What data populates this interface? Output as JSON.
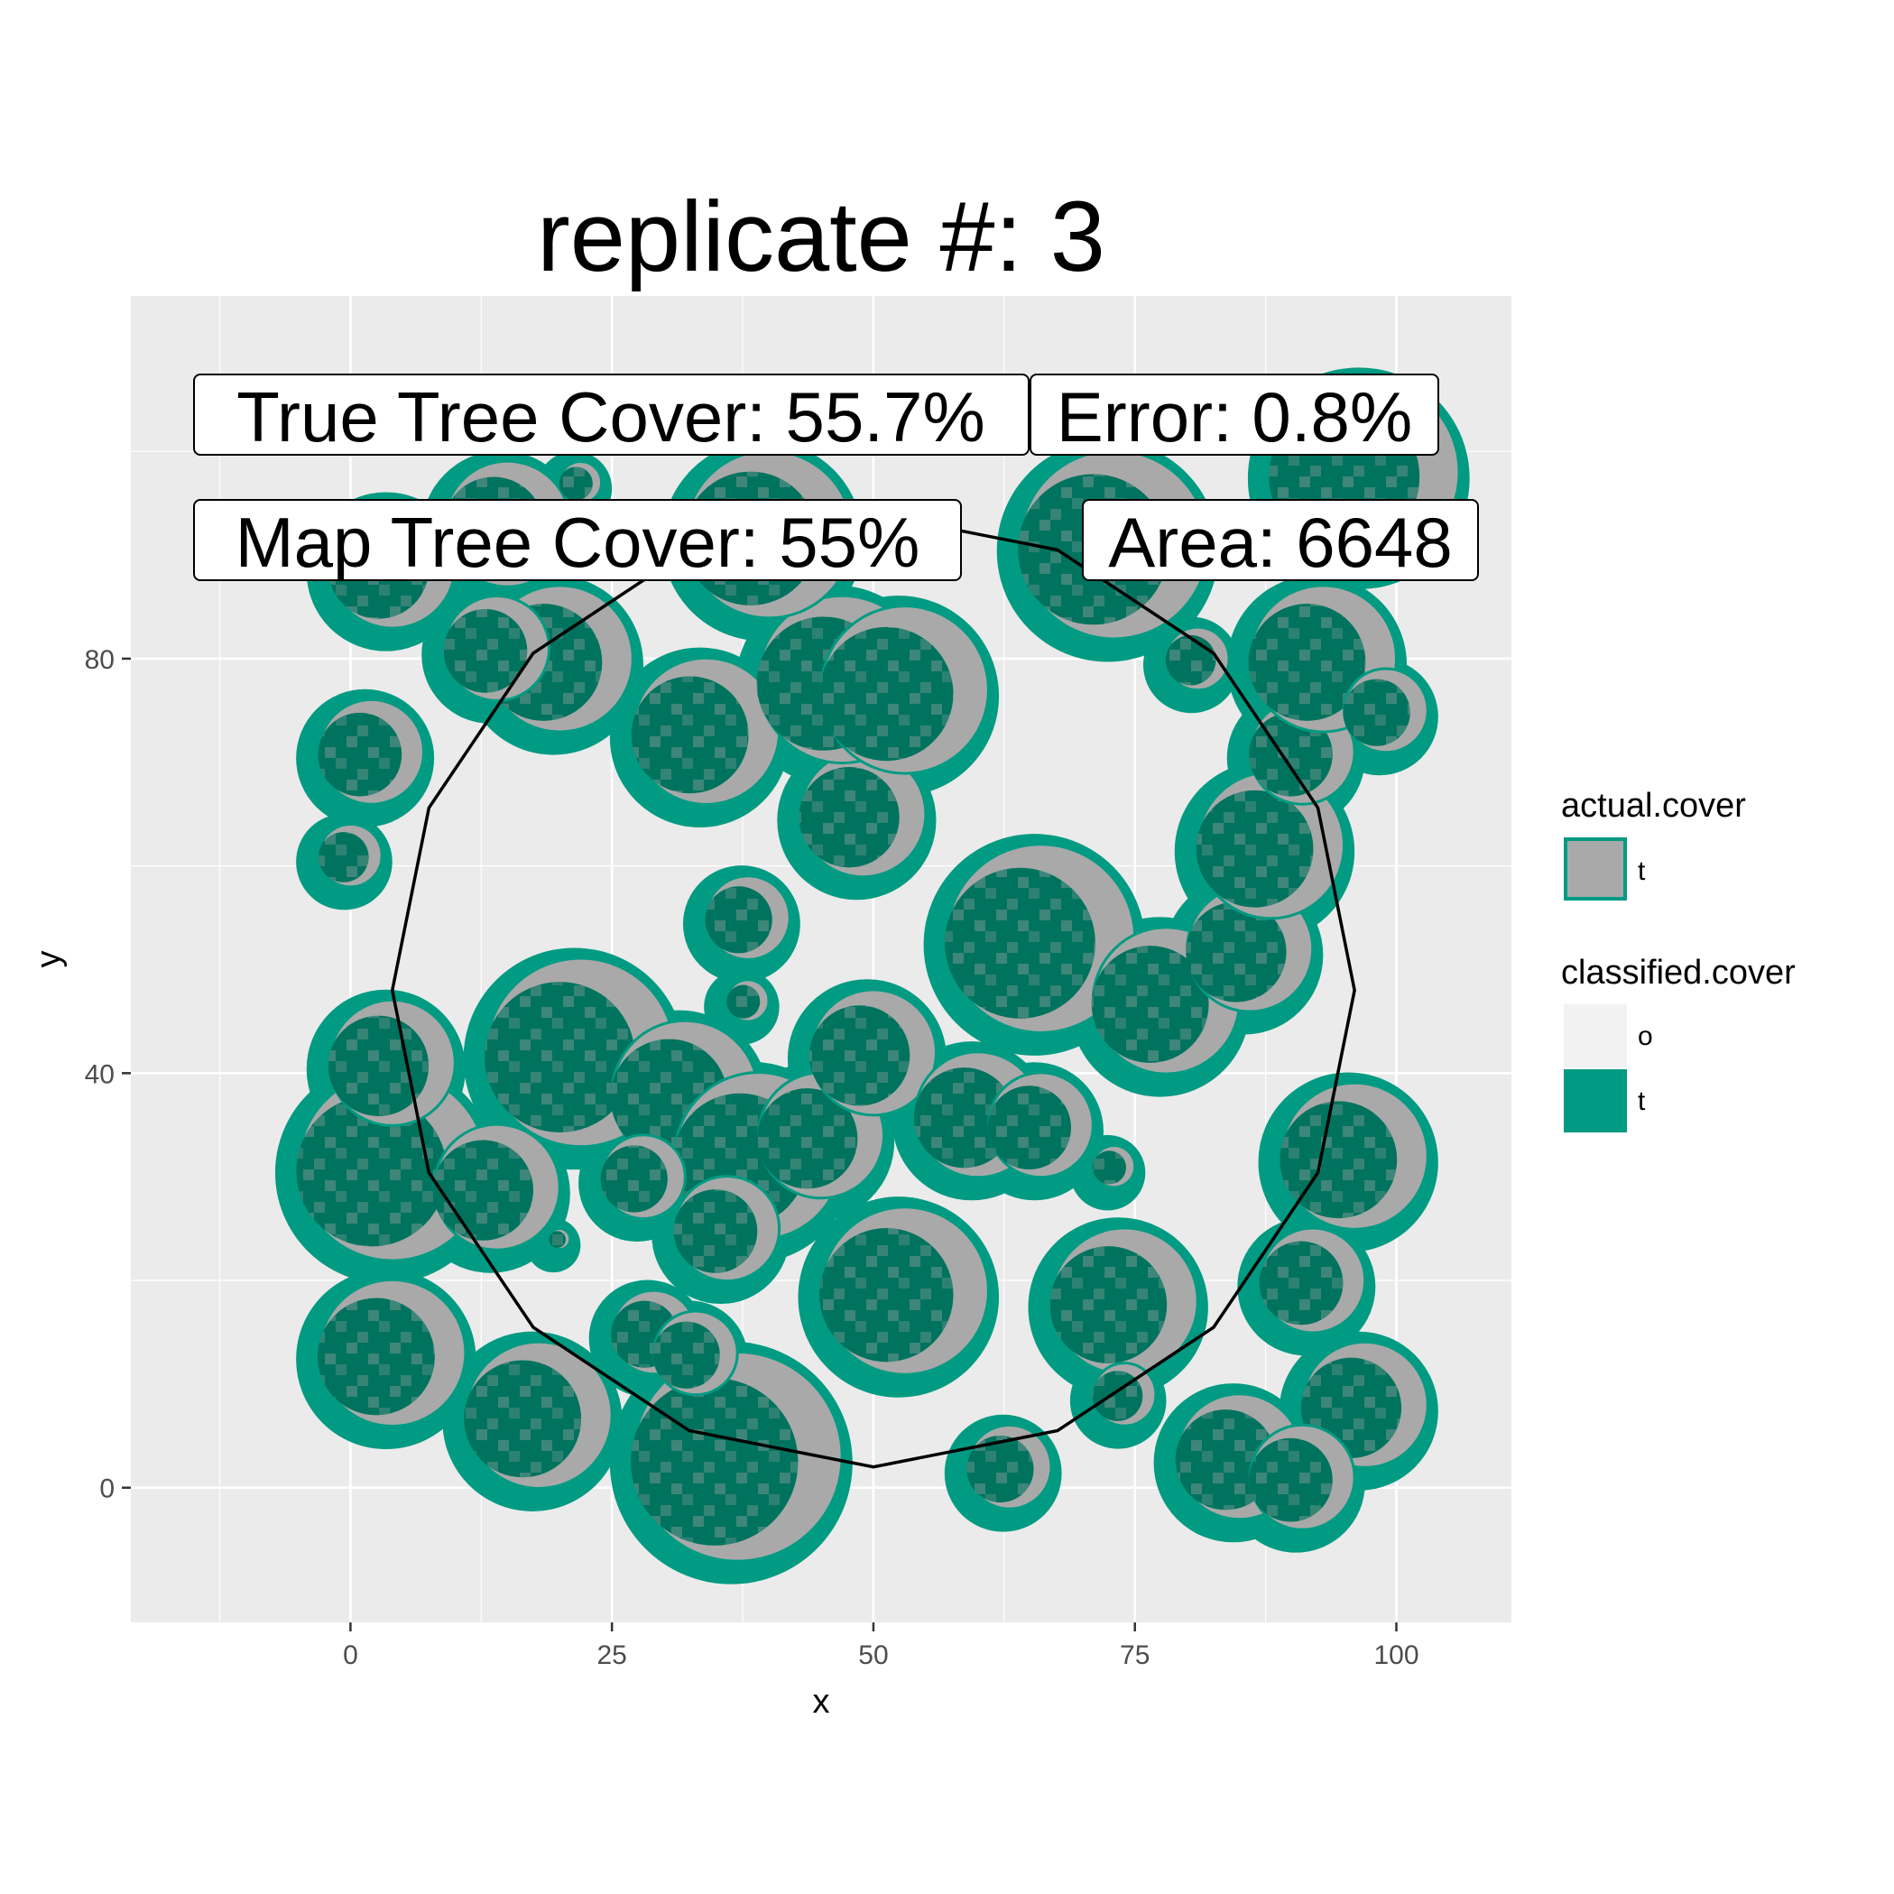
{
  "chart_data": {
    "type": "map",
    "title": "replicate #: 3",
    "xlabel": "x",
    "ylabel": "y",
    "xlim": [
      -21,
      111
    ],
    "ylim": [
      -13,
      115
    ],
    "x_ticks": [
      0,
      25,
      50,
      75,
      100
    ],
    "y_ticks": [
      0,
      40,
      80
    ],
    "grid": true,
    "legend_placement": "right",
    "legends": [
      {
        "title": "actual.cover",
        "items": [
          {
            "label": "t",
            "fill": "#a9a9a9",
            "stroke": "#009b82"
          }
        ]
      },
      {
        "title": "classified.cover",
        "items": [
          {
            "label": "o",
            "fill": "#f2f2f2"
          },
          {
            "label": "t",
            "fill": "#009b82"
          }
        ]
      }
    ],
    "annotations": [
      {
        "text": "True Tree Cover: 55.7%"
      },
      {
        "text": "Error: 0.8%"
      },
      {
        "text": "Map Tree Cover: 55%"
      },
      {
        "text": "Area: 6648"
      }
    ],
    "sample_circle": {
      "center": [
        50,
        48
      ],
      "radius": 46
    },
    "trees": [
      {
        "x": 37,
        "y": 3,
        "r": 10
      },
      {
        "x": 18,
        "y": 7,
        "r": 7
      },
      {
        "x": 4,
        "y": 13,
        "r": 7
      },
      {
        "x": 29,
        "y": 15,
        "r": 4
      },
      {
        "x": 33,
        "y": 13,
        "r": 4
      },
      {
        "x": 53,
        "y": 19,
        "r": 8
      },
      {
        "x": 74,
        "y": 18,
        "r": 7
      },
      {
        "x": 92,
        "y": 20,
        "r": 5
      },
      {
        "x": 97,
        "y": 8,
        "r": 6
      },
      {
        "x": 85,
        "y": 3,
        "r": 6
      },
      {
        "x": 91,
        "y": 1,
        "r": 5
      },
      {
        "x": 63,
        "y": 2,
        "r": 4
      },
      {
        "x": 74,
        "y": 9,
        "r": 3
      },
      {
        "x": 96,
        "y": 32,
        "r": 7
      },
      {
        "x": 4,
        "y": 31,
        "r": 9
      },
      {
        "x": 14,
        "y": 29,
        "r": 6
      },
      {
        "x": 4,
        "y": 41,
        "r": 6
      },
      {
        "x": 22,
        "y": 42,
        "r": 9
      },
      {
        "x": 32,
        "y": 38,
        "r": 7
      },
      {
        "x": 39,
        "y": 32,
        "r": 8
      },
      {
        "x": 36,
        "y": 25,
        "r": 5
      },
      {
        "x": 45,
        "y": 34,
        "r": 6
      },
      {
        "x": 50,
        "y": 42,
        "r": 6
      },
      {
        "x": 60,
        "y": 36,
        "r": 6
      },
      {
        "x": 66,
        "y": 35,
        "r": 5
      },
      {
        "x": 28,
        "y": 30,
        "r": 4
      },
      {
        "x": 73,
        "y": 31,
        "r": 2
      },
      {
        "x": 20,
        "y": 24,
        "r": 1
      },
      {
        "x": 38,
        "y": 47,
        "r": 2
      },
      {
        "x": 66,
        "y": 53,
        "r": 9
      },
      {
        "x": 78,
        "y": 47,
        "r": 7
      },
      {
        "x": 86,
        "y": 52,
        "r": 6
      },
      {
        "x": 88,
        "y": 62,
        "r": 7
      },
      {
        "x": 91,
        "y": 71,
        "r": 5
      },
      {
        "x": 93,
        "y": 80,
        "r": 7
      },
      {
        "x": 99,
        "y": 75,
        "r": 4
      },
      {
        "x": 81,
        "y": 80,
        "r": 3
      },
      {
        "x": 97,
        "y": 98,
        "r": 9
      },
      {
        "x": 73,
        "y": 91,
        "r": 9
      },
      {
        "x": 38,
        "y": 55,
        "r": 4
      },
      {
        "x": 49,
        "y": 65,
        "r": 6
      },
      {
        "x": 34,
        "y": 73,
        "r": 7
      },
      {
        "x": 47,
        "y": 78,
        "r": 8
      },
      {
        "x": 53,
        "y": 77,
        "r": 8
      },
      {
        "x": 40,
        "y": 92,
        "r": 8
      },
      {
        "x": 20,
        "y": 80,
        "r": 7
      },
      {
        "x": 14,
        "y": 81,
        "r": 5
      },
      {
        "x": 15,
        "y": 93,
        "r": 6
      },
      {
        "x": 4,
        "y": 89,
        "r": 6
      },
      {
        "x": 2,
        "y": 71,
        "r": 5
      },
      {
        "x": 0,
        "y": 61,
        "r": 3
      },
      {
        "x": 22,
        "y": 97,
        "r": 2
      }
    ]
  }
}
